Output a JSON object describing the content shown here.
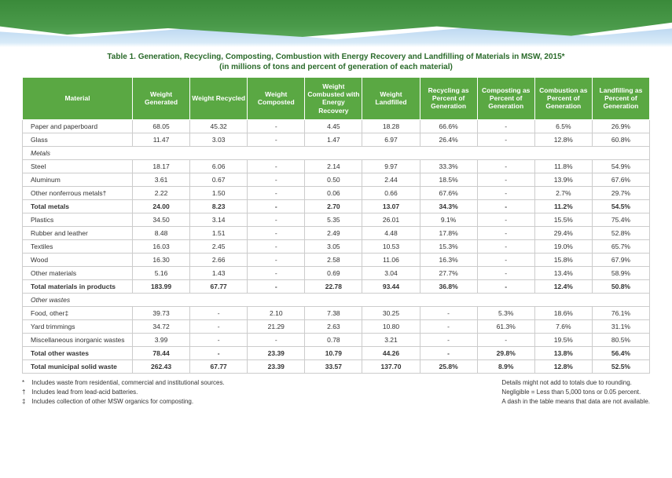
{
  "title_line1": "Table 1. Generation, Recycling, Composting, Combustion with Energy Recovery and Landfilling of Materials in MSW, 2015*",
  "title_line2": "(in millions of tons and percent of generation of each material)",
  "columns": [
    "Material",
    "Weight Generated",
    "Weight Recycled",
    "Weight Composted",
    "Weight Combusted with Energy Recovery",
    "Weight Landfilled",
    "Recycling as Percent of Generation",
    "Composting as Percent of Generation",
    "Combustion as Percent of Generation",
    "Landfilling as Percent of Generation"
  ],
  "rows": [
    {
      "t": "d",
      "c": [
        "Paper and paperboard",
        "68.05",
        "45.32",
        "-",
        "4.45",
        "18.28",
        "66.6%",
        "-",
        "6.5%",
        "26.9%"
      ]
    },
    {
      "t": "d",
      "c": [
        "Glass",
        "11.47",
        "3.03",
        "-",
        "1.47",
        "6.97",
        "26.4%",
        "-",
        "12.8%",
        "60.8%"
      ]
    },
    {
      "t": "h",
      "c": [
        "Metals"
      ]
    },
    {
      "t": "d",
      "c": [
        "Steel",
        "18.17",
        "6.06",
        "-",
        "2.14",
        "9.97",
        "33.3%",
        "-",
        "11.8%",
        "54.9%"
      ]
    },
    {
      "t": "d",
      "c": [
        "Aluminum",
        "3.61",
        "0.67",
        "-",
        "0.50",
        "2.44",
        "18.5%",
        "-",
        "13.9%",
        "67.6%"
      ]
    },
    {
      "t": "d",
      "c": [
        "Other nonferrous metals†",
        "2.22",
        "1.50",
        "-",
        "0.06",
        "0.66",
        "67.6%",
        "-",
        "2.7%",
        "29.7%"
      ]
    },
    {
      "t": "t",
      "c": [
        "Total metals",
        "24.00",
        "8.23",
        "-",
        "2.70",
        "13.07",
        "34.3%",
        "-",
        "11.2%",
        "54.5%"
      ]
    },
    {
      "t": "d",
      "c": [
        "Plastics",
        "34.50",
        "3.14",
        "-",
        "5.35",
        "26.01",
        "9.1%",
        "-",
        "15.5%",
        "75.4%"
      ]
    },
    {
      "t": "d",
      "c": [
        "Rubber and leather",
        "8.48",
        "1.51",
        "-",
        "2.49",
        "4.48",
        "17.8%",
        "-",
        "29.4%",
        "52.8%"
      ]
    },
    {
      "t": "d",
      "c": [
        "Textiles",
        "16.03",
        "2.45",
        "-",
        "3.05",
        "10.53",
        "15.3%",
        "-",
        "19.0%",
        "65.7%"
      ]
    },
    {
      "t": "d",
      "c": [
        "Wood",
        "16.30",
        "2.66",
        "-",
        "2.58",
        "11.06",
        "16.3%",
        "-",
        "15.8%",
        "67.9%"
      ]
    },
    {
      "t": "d",
      "c": [
        "Other materials",
        "5.16",
        "1.43",
        "-",
        "0.69",
        "3.04",
        "27.7%",
        "-",
        "13.4%",
        "58.9%"
      ]
    },
    {
      "t": "t",
      "c": [
        "Total materials in products",
        "183.99",
        "67.77",
        "-",
        "22.78",
        "93.44",
        "36.8%",
        "-",
        "12.4%",
        "50.8%"
      ]
    },
    {
      "t": "h",
      "c": [
        "Other wastes"
      ]
    },
    {
      "t": "d",
      "c": [
        "Food, other‡",
        "39.73",
        "-",
        "2.10",
        "7.38",
        "30.25",
        "-",
        "5.3%",
        "18.6%",
        "76.1%"
      ]
    },
    {
      "t": "d",
      "c": [
        "Yard trimmings",
        "34.72",
        "-",
        "21.29",
        "2.63",
        "10.80",
        "-",
        "61.3%",
        "7.6%",
        "31.1%"
      ]
    },
    {
      "t": "d",
      "c": [
        "Miscellaneous inorganic wastes",
        "3.99",
        "-",
        "-",
        "0.78",
        "3.21",
        "-",
        "-",
        "19.5%",
        "80.5%"
      ]
    },
    {
      "t": "t",
      "c": [
        "Total other wastes",
        "78.44",
        "-",
        "23.39",
        "10.79",
        "44.26",
        "-",
        "29.8%",
        "13.8%",
        "56.4%"
      ]
    },
    {
      "t": "t",
      "c": [
        "Total municipal solid waste",
        "262.43",
        "67.77",
        "23.39",
        "33.57",
        "137.70",
        "25.8%",
        "8.9%",
        "12.8%",
        "52.5%"
      ]
    }
  ],
  "footnotes_left": [
    {
      "sym": "*",
      "txt": "Includes waste from residential, commercial and institutional sources."
    },
    {
      "sym": "†",
      "txt": "Includes lead from lead-acid batteries."
    },
    {
      "sym": "‡",
      "txt": "Includes collection of other MSW organics for composting."
    }
  ],
  "footnotes_right": [
    "Details might not add to totals due to rounding.",
    "Negligible = Less than 5,000 tons or 0.05 percent.",
    "A dash in the table means that data are not available."
  ],
  "colors": {
    "header_bg": "#5aa843",
    "header_text": "#ffffff",
    "title_color": "#2a6a2a",
    "border": "#cccccc"
  }
}
